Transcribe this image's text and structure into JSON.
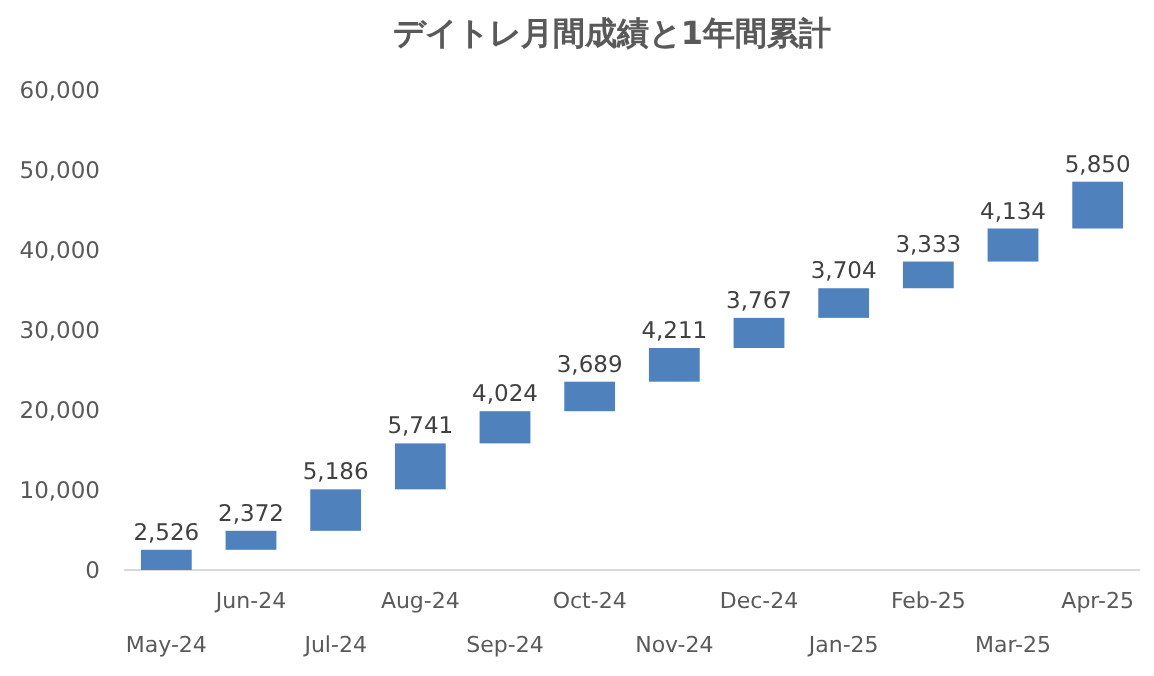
{
  "chart_data": {
    "type": "bar",
    "title": "デイトレ月間成績と1年間累計",
    "categories": [
      "May-24",
      "Jun-24",
      "Jul-24",
      "Aug-24",
      "Sep-24",
      "Oct-24",
      "Nov-24",
      "Dec-24",
      "Jan-25",
      "Feb-25",
      "Mar-25",
      "Apr-25"
    ],
    "values": [
      2526,
      2372,
      5186,
      5741,
      4024,
      3689,
      4211,
      3767,
      3704,
      3333,
      4134,
      5850
    ],
    "base": [
      0,
      2526,
      4898,
      10084,
      15825,
      19849,
      23538,
      27749,
      31516,
      35220,
      38553,
      42687
    ],
    "value_labels": [
      "2,526",
      "2,372",
      "5,186",
      "5,741",
      "4,024",
      "3,689",
      "4,211",
      "3,767",
      "3,704",
      "3,333",
      "4,134",
      "5,850"
    ],
    "color": "#4f81bd",
    "ylim": [
      0,
      60000
    ],
    "yticks": [
      {
        "value": 0,
        "label": "0"
      },
      {
        "value": 10000,
        "label": "10,000"
      },
      {
        "value": 20000,
        "label": "20,000"
      },
      {
        "value": 30000,
        "label": "30,000"
      },
      {
        "value": 40000,
        "label": "40,000"
      },
      {
        "value": 50000,
        "label": "50,000"
      },
      {
        "value": 60000,
        "label": "60,000"
      }
    ]
  }
}
